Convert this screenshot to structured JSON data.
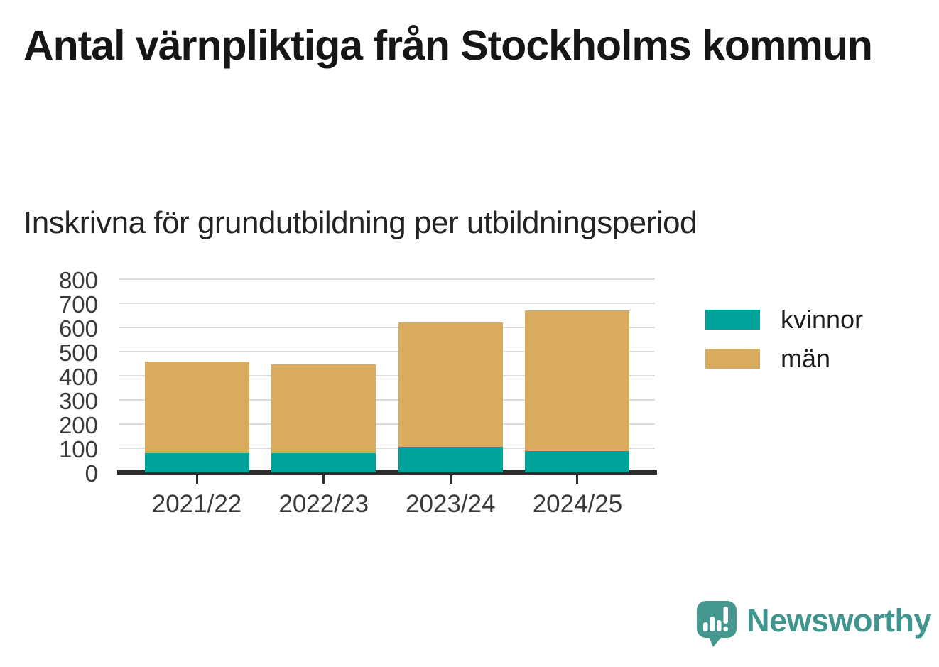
{
  "title": "Antal värnpliktiga från Stockholms kommun",
  "subtitle": "Inskrivna för grundutbildning per utbildningsperiod",
  "chart_data": {
    "type": "bar",
    "stacked": true,
    "title": "Antal värnpliktiga från Stockholms kommun",
    "subtitle": "Inskrivna för grundutbildning per utbildningsperiod",
    "categories": [
      "2021/22",
      "2022/23",
      "2023/24",
      "2024/25"
    ],
    "series": [
      {
        "name": "kvinnor",
        "color": "#00a399",
        "values": [
          80,
          78,
          106,
          88
        ]
      },
      {
        "name": "män",
        "color": "#d8ab5e",
        "values": [
          378,
          368,
          514,
          584
        ]
      }
    ],
    "totals": [
      458,
      446,
      620,
      672
    ],
    "xlabel": "",
    "ylabel": "",
    "ylim": [
      0,
      800
    ],
    "ytick_step": 100,
    "ytick_labels": [
      "0",
      "100",
      "200",
      "300",
      "400",
      "500",
      "600",
      "700",
      "800"
    ],
    "grid": true,
    "legend_position": "right"
  },
  "colors": {
    "grid": "#dcdcdc",
    "axis": "#2d2d2d",
    "axis_text": "#3a3a3a",
    "title_text": "#161616",
    "logo": "#3f968e"
  },
  "branding": {
    "logo_text": "Newsworthy",
    "logo_icon": "speech-bubble-bar-chart-icon"
  }
}
